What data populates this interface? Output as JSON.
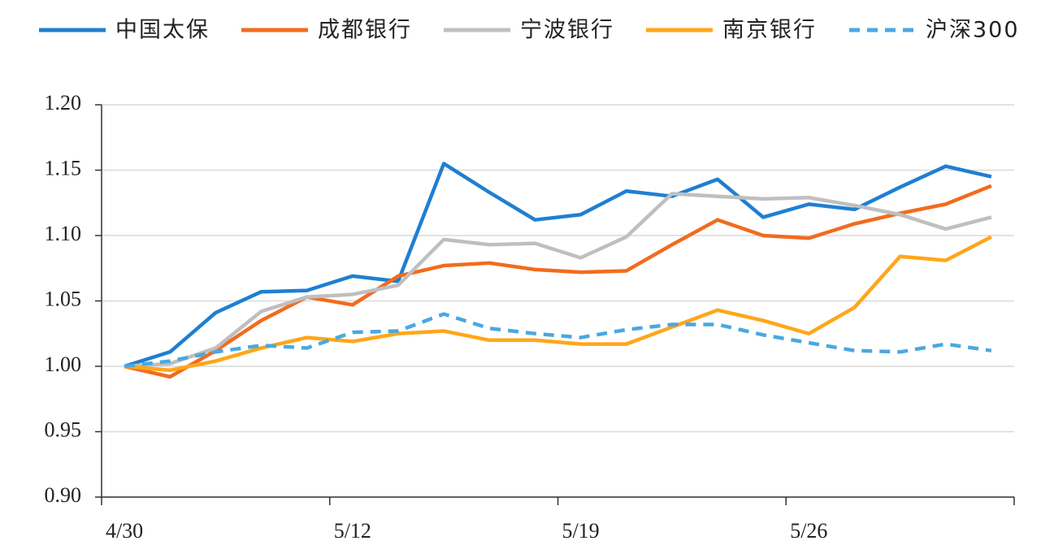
{
  "chart_data": {
    "type": "line",
    "categories": [
      "4/30",
      null,
      null,
      null,
      null,
      "5/12",
      null,
      null,
      null,
      null,
      "5/19",
      null,
      null,
      null,
      null,
      "5/26",
      null,
      null,
      null,
      null
    ],
    "series": [
      {
        "name": "中国太保",
        "color": "#1f7fd1",
        "style": "solid",
        "values": [
          1.0,
          1.011,
          1.041,
          1.057,
          1.058,
          1.069,
          1.065,
          1.155,
          1.133,
          1.112,
          1.116,
          1.134,
          1.13,
          1.143,
          1.114,
          1.124,
          1.12,
          1.137,
          1.153,
          1.145
        ]
      },
      {
        "name": "成都银行",
        "color": "#f26b1d",
        "style": "solid",
        "values": [
          1.0,
          0.992,
          1.012,
          1.035,
          1.053,
          1.047,
          1.069,
          1.077,
          1.079,
          1.074,
          1.072,
          1.073,
          1.093,
          1.112,
          1.1,
          1.098,
          1.109,
          1.117,
          1.124,
          1.138
        ]
      },
      {
        "name": "宁波银行",
        "color": "#bfbfbf",
        "style": "solid",
        "values": [
          1.0,
          1.002,
          1.014,
          1.042,
          1.053,
          1.055,
          1.062,
          1.097,
          1.093,
          1.094,
          1.083,
          1.099,
          1.132,
          1.13,
          1.128,
          1.129,
          1.123,
          1.116,
          1.105,
          1.114
        ]
      },
      {
        "name": "南京银行",
        "color": "#ffa619",
        "style": "solid",
        "values": [
          1.0,
          0.997,
          1.004,
          1.014,
          1.022,
          1.019,
          1.025,
          1.027,
          1.02,
          1.02,
          1.017,
          1.017,
          1.03,
          1.043,
          1.035,
          1.025,
          1.045,
          1.084,
          1.081,
          1.099
        ]
      },
      {
        "name": "沪深300",
        "color": "#4aa8e0",
        "style": "dashed",
        "values": [
          1.0,
          1.004,
          1.011,
          1.016,
          1.014,
          1.026,
          1.027,
          1.04,
          1.029,
          1.025,
          1.022,
          1.028,
          1.032,
          1.032,
          1.024,
          1.018,
          1.012,
          1.011,
          1.017,
          1.012
        ]
      }
    ],
    "ylim": [
      0.9,
      1.2
    ],
    "yticks": [
      {
        "value": 0.9,
        "label": "0.90"
      },
      0.95,
      {
        "value": 1.0,
        "label": "1.00"
      },
      1.05,
      {
        "value": 1.1,
        "label": "1.10"
      },
      1.15,
      {
        "value": 1.2,
        "label": "1.20"
      }
    ],
    "grid": true,
    "legend": "top"
  }
}
